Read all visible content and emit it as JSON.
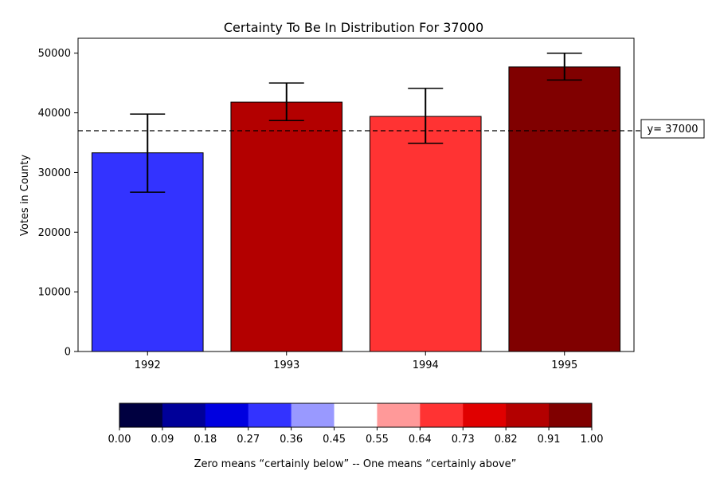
{
  "chart_data": {
    "type": "bar",
    "title": "Certainty To Be In Distribution For 37000",
    "xlabel": "",
    "ylabel": "Votes in County",
    "categories": [
      "1992",
      "1993",
      "1994",
      "1995"
    ],
    "values": [
      33300,
      41800,
      39400,
      47700
    ],
    "error_low": [
      26700,
      38700,
      34900,
      45500
    ],
    "error_high": [
      39800,
      45000,
      44100,
      50000
    ],
    "bar_colors": [
      "#3333ff",
      "#b30000",
      "#ff3333",
      "#800000"
    ],
    "ylim": [
      0,
      52500
    ],
    "yticks": [
      0,
      10000,
      20000,
      30000,
      40000,
      50000
    ],
    "reference_line": {
      "y": 37000,
      "label": "y= 37000"
    },
    "grid": false
  },
  "colorbar": {
    "colors": [
      "#000040",
      "#000099",
      "#0000e0",
      "#3333ff",
      "#9999ff",
      "#ffffff",
      "#ff9999",
      "#ff3333",
      "#e00000",
      "#b30000",
      "#800000"
    ],
    "ticks": [
      "0.00",
      "0.09",
      "0.18",
      "0.27",
      "0.36",
      "0.45",
      "0.55",
      "0.64",
      "0.73",
      "0.82",
      "0.91",
      "1.00"
    ],
    "label": "Zero means “certainly below” -- One means “certainly above”"
  }
}
